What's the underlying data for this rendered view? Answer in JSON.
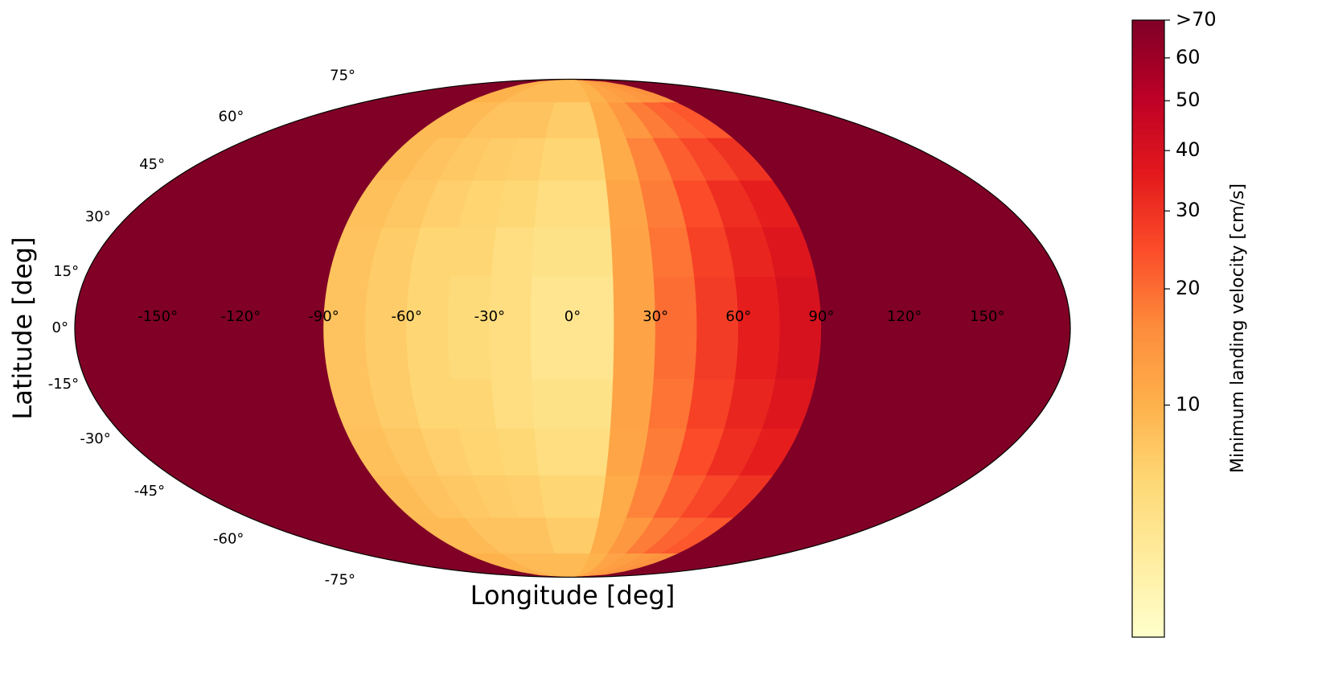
{
  "chart_data": {
    "type": "mollweide-heatmap",
    "xlabel": "Longitude [deg]",
    "ylabel": "Latitude [deg]",
    "colorbar_label": "Minimum landing velocity [cm/s]",
    "colormap": [
      "#ffffcc",
      "#ffeda0",
      "#fed976",
      "#feb24c",
      "#fd8d3c",
      "#fc4e2a",
      "#e31a1c",
      "#bd0026",
      "#800026"
    ],
    "color_scale": "power",
    "gamma": 0.25,
    "clim": [
      1.5,
      70
    ],
    "cticks": [
      10,
      20,
      30,
      40,
      50,
      60,
      {
        "value": 70,
        "label": ">70"
      }
    ],
    "xticks": [
      {
        "value": -150,
        "label": "-150°"
      },
      {
        "value": -120,
        "label": "-120°"
      },
      {
        "value": -90,
        "label": "-90°"
      },
      {
        "value": -60,
        "label": "-60°"
      },
      {
        "value": -30,
        "label": "-30°"
      },
      {
        "value": 0,
        "label": "0°"
      },
      {
        "value": 30,
        "label": "30°"
      },
      {
        "value": 60,
        "label": "60°"
      },
      {
        "value": 90,
        "label": "90°"
      },
      {
        "value": 120,
        "label": "120°"
      },
      {
        "value": 150,
        "label": "150°"
      }
    ],
    "yticks": [
      {
        "value": 75,
        "label": "75°"
      },
      {
        "value": 60,
        "label": "60°"
      },
      {
        "value": 45,
        "label": "45°"
      },
      {
        "value": 30,
        "label": "30°"
      },
      {
        "value": 15,
        "label": "15°"
      },
      {
        "value": 0,
        "label": "0°"
      },
      {
        "value": -15,
        "label": "-15°"
      },
      {
        "value": -30,
        "label": "-30°"
      },
      {
        "value": -45,
        "label": "-45°"
      },
      {
        "value": -60,
        "label": "-60°"
      },
      {
        "value": -75,
        "label": "-75°"
      }
    ],
    "lon_bins": [
      -180,
      -165,
      -150,
      -135,
      -120,
      -105,
      -90,
      -75,
      -60,
      -45,
      -30,
      -15,
      0,
      15,
      30,
      45,
      60,
      75,
      90,
      105,
      120,
      135,
      150,
      165,
      180
    ],
    "lat_bins": [
      90,
      75,
      60,
      45,
      30,
      15,
      0,
      -15,
      -30,
      -45,
      -60,
      -75,
      -90
    ],
    "values": [
      [
        100,
        100,
        100,
        100,
        100,
        100,
        10,
        10,
        9,
        9,
        9,
        9,
        9,
        10,
        12,
        13,
        14,
        15,
        100,
        100,
        100,
        100,
        100,
        100
      ],
      [
        100,
        100,
        100,
        100,
        100,
        100,
        9,
        9,
        8,
        8,
        8,
        7,
        7,
        11,
        14,
        18,
        21,
        23,
        100,
        100,
        100,
        100,
        100,
        100
      ],
      [
        100,
        100,
        100,
        100,
        100,
        100,
        8.7,
        8,
        7.4,
        7,
        6.7,
        6,
        6,
        11,
        17,
        22,
        26,
        30,
        100,
        100,
        100,
        100,
        100,
        100
      ],
      [
        100,
        100,
        100,
        100,
        100,
        100,
        8.3,
        7.5,
        6.7,
        6.2,
        5.9,
        5,
        5,
        11.7,
        18,
        25,
        31,
        35,
        100,
        100,
        100,
        100,
        100,
        100
      ],
      [
        100,
        100,
        100,
        100,
        100,
        100,
        8,
        7,
        6,
        6,
        5,
        4.5,
        4.5,
        12,
        19,
        27,
        33,
        38,
        100,
        100,
        100,
        100,
        100,
        100
      ],
      [
        100,
        100,
        100,
        100,
        100,
        100,
        8,
        7,
        6,
        5.5,
        5,
        4,
        4,
        12,
        20,
        28,
        35,
        40,
        100,
        100,
        100,
        100,
        100,
        100
      ],
      [
        100,
        100,
        100,
        100,
        100,
        100,
        8,
        7,
        6,
        5.5,
        5,
        4,
        4,
        12,
        20,
        28,
        35,
        40,
        100,
        100,
        100,
        100,
        100,
        100
      ],
      [
        100,
        100,
        100,
        100,
        100,
        100,
        8,
        7,
        6,
        6,
        5,
        4.5,
        4.5,
        12,
        19,
        27,
        33,
        38,
        100,
        100,
        100,
        100,
        100,
        100
      ],
      [
        100,
        100,
        100,
        100,
        100,
        100,
        8.3,
        7.5,
        6.7,
        6.2,
        5.9,
        5,
        5,
        11.7,
        18,
        25,
        31,
        35,
        100,
        100,
        100,
        100,
        100,
        100
      ],
      [
        100,
        100,
        100,
        100,
        100,
        100,
        8.7,
        8,
        7.4,
        7,
        6.7,
        6,
        6,
        11,
        17,
        22,
        26,
        30,
        100,
        100,
        100,
        100,
        100,
        100
      ],
      [
        100,
        100,
        100,
        100,
        100,
        100,
        9,
        9,
        8,
        8,
        8,
        7,
        7,
        11,
        14,
        18,
        21,
        23,
        100,
        100,
        100,
        100,
        100,
        100
      ],
      [
        100,
        100,
        100,
        100,
        100,
        100,
        10,
        10,
        9,
        9,
        9,
        9,
        9,
        10,
        12,
        13,
        14,
        15,
        100,
        100,
        100,
        100,
        100,
        100
      ]
    ]
  }
}
